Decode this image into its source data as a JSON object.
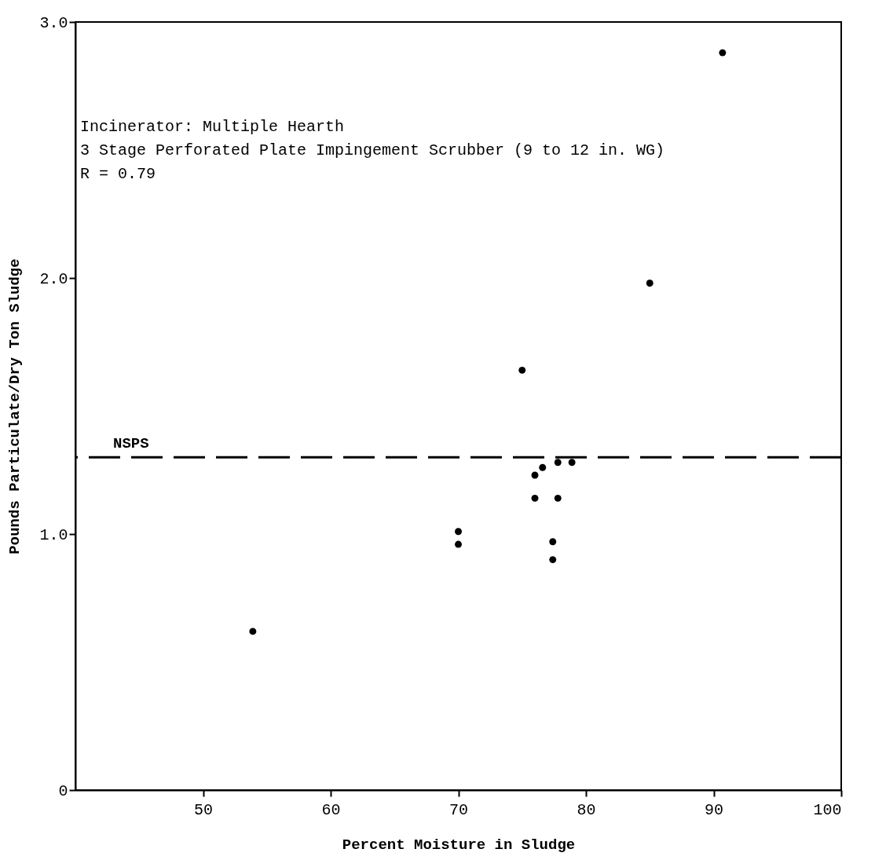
{
  "chart_data": {
    "type": "scatter",
    "xlabel": "Percent Moisture in Sludge",
    "ylabel": "Pounds Particulate/Dry Ton Sludge",
    "x": [
      53.9,
      70,
      70,
      75,
      76,
      76.6,
      76,
      77.8,
      78.9,
      77.8,
      77.4,
      77.4,
      85,
      90.7
    ],
    "series": [
      {
        "color": "#000000",
        "values": [
          0.62,
          1.01,
          0.96,
          1.64,
          1.23,
          1.26,
          1.14,
          1.28,
          1.28,
          1.14,
          0.97,
          0.9,
          1.98,
          2.88
        ]
      }
    ],
    "xlim": [
      40,
      100
    ],
    "xticks": [
      50,
      60,
      70,
      80,
      90,
      100
    ],
    "ylim": [
      0,
      3
    ],
    "yticks": [
      {
        "value": 0,
        "label": "0"
      },
      {
        "value": 1,
        "label": "1.0"
      },
      {
        "value": 2,
        "label": "2.0"
      },
      {
        "value": 3,
        "label": "3.0"
      }
    ],
    "ref_lines": [
      {
        "axis": "y",
        "value": 1.3,
        "label": "NSPS",
        "line_style": "dashed",
        "color": "#000000"
      }
    ],
    "annotations": [
      "Incinerator:  Multiple Hearth",
      "3 Stage Perforated Plate Impingement Scrubber (9 to 12 in. WG)",
      "R = 0.79"
    ],
    "marker": "circle",
    "grid": false,
    "legend": false
  }
}
